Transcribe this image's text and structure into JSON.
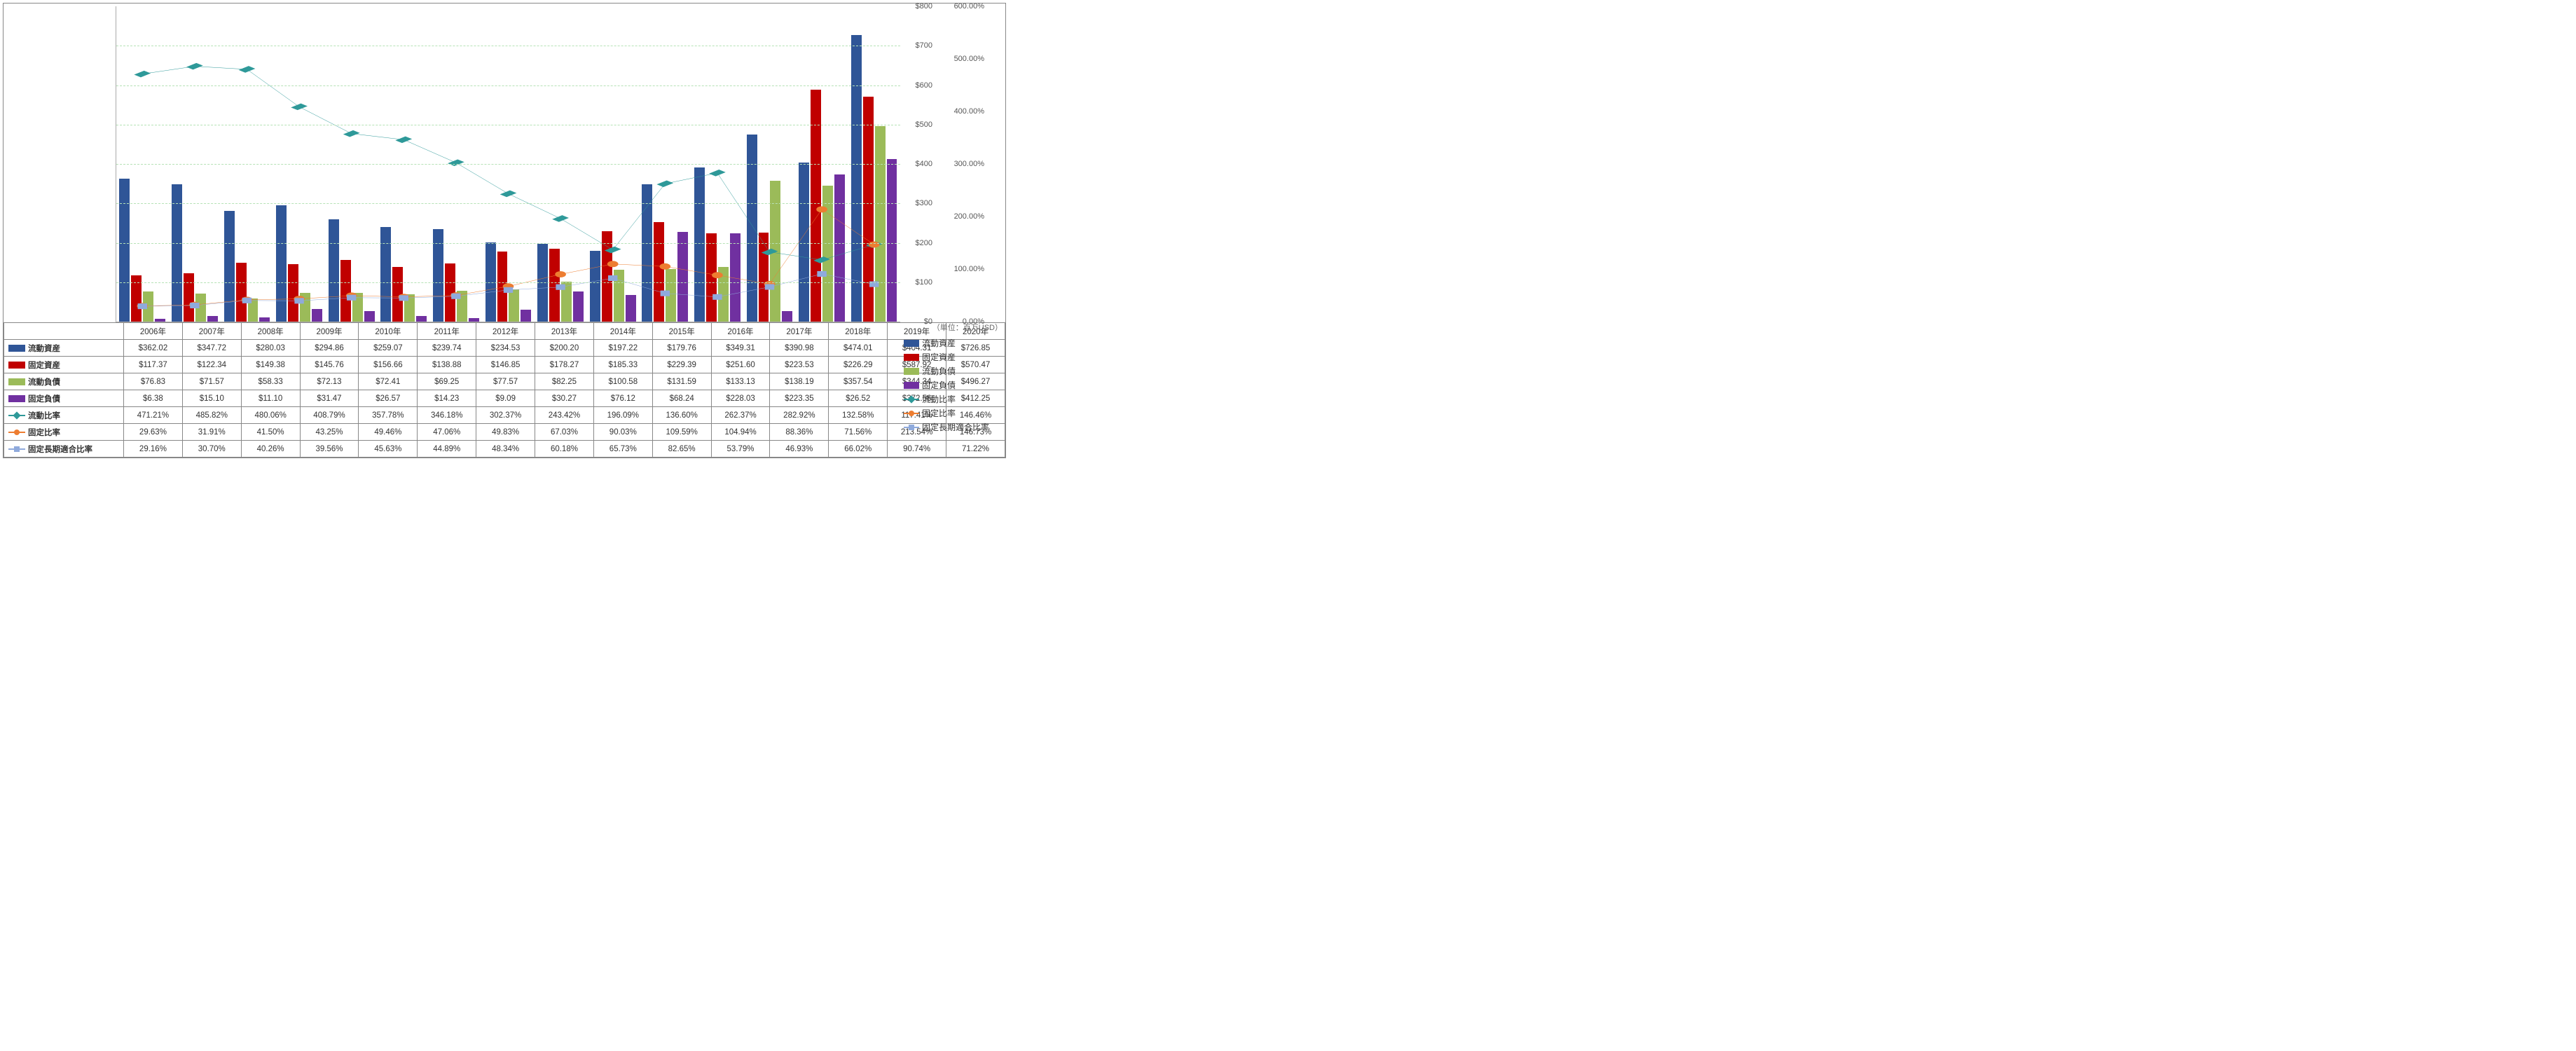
{
  "type": "combo-bar-line-with-table",
  "unit_label": "（単位：百万USD）",
  "categories": [
    "2006年",
    "2007年",
    "2008年",
    "2009年",
    "2010年",
    "2011年",
    "2012年",
    "2013年",
    "2014年",
    "2015年",
    "2016年",
    "2017年",
    "2018年",
    "2019年",
    "2020年"
  ],
  "primary_axis": {
    "max": 800,
    "tick_step": 100,
    "prefix": "$"
  },
  "secondary_axis": {
    "max": 600,
    "tick_step": 100,
    "suffix": ".00%"
  },
  "grid_color": "#b6e2b6",
  "background_color": "#ffffff",
  "bar_series": [
    {
      "key": "ca",
      "label": "流動資産",
      "color": "#2f5597",
      "values": [
        362.02,
        347.72,
        280.03,
        294.86,
        259.07,
        239.74,
        234.53,
        200.2,
        197.22,
        179.76,
        349.31,
        390.98,
        474.01,
        404.31,
        726.85
      ]
    },
    {
      "key": "fa",
      "label": "固定資産",
      "color": "#c00000",
      "values": [
        117.37,
        122.34,
        149.38,
        145.76,
        156.66,
        138.88,
        146.85,
        178.27,
        185.33,
        229.39,
        251.6,
        223.53,
        226.29,
        587.92,
        570.47
      ]
    },
    {
      "key": "cl",
      "label": "流動負債",
      "color": "#9bbb59",
      "values": [
        76.83,
        71.57,
        58.33,
        72.13,
        72.41,
        69.25,
        77.57,
        82.25,
        100.58,
        131.59,
        133.13,
        138.19,
        357.54,
        344.34,
        496.27
      ]
    },
    {
      "key": "fl",
      "label": "固定負債",
      "color": "#7030a0",
      "values": [
        6.38,
        15.1,
        11.1,
        31.47,
        26.57,
        14.23,
        9.09,
        30.27,
        76.12,
        68.24,
        228.03,
        223.35,
        26.52,
        372.56,
        412.25
      ]
    }
  ],
  "line_series": [
    {
      "key": "cr",
      "label": "流動比率",
      "color": "#2e9999",
      "marker": "diamond",
      "values": [
        471.21,
        485.82,
        480.06,
        408.79,
        357.78,
        346.18,
        302.37,
        243.42,
        196.09,
        136.6,
        262.37,
        282.92,
        132.58,
        117.41,
        146.46
      ]
    },
    {
      "key": "fr",
      "label": "固定比率",
      "color": "#ed7d31",
      "marker": "circle",
      "values": [
        29.63,
        31.91,
        41.5,
        43.25,
        49.46,
        47.06,
        49.83,
        67.03,
        90.03,
        109.59,
        104.94,
        88.36,
        71.56,
        213.54,
        146.73
      ]
    },
    {
      "key": "flr",
      "label": "固定長期適合比率",
      "color": "#8faadc",
      "marker": "square",
      "values": [
        29.16,
        30.7,
        40.26,
        39.56,
        45.63,
        44.89,
        48.34,
        60.18,
        65.73,
        82.65,
        53.79,
        46.93,
        66.02,
        90.74,
        71.22
      ]
    }
  ],
  "line_width": 2,
  "marker_size": 8
}
